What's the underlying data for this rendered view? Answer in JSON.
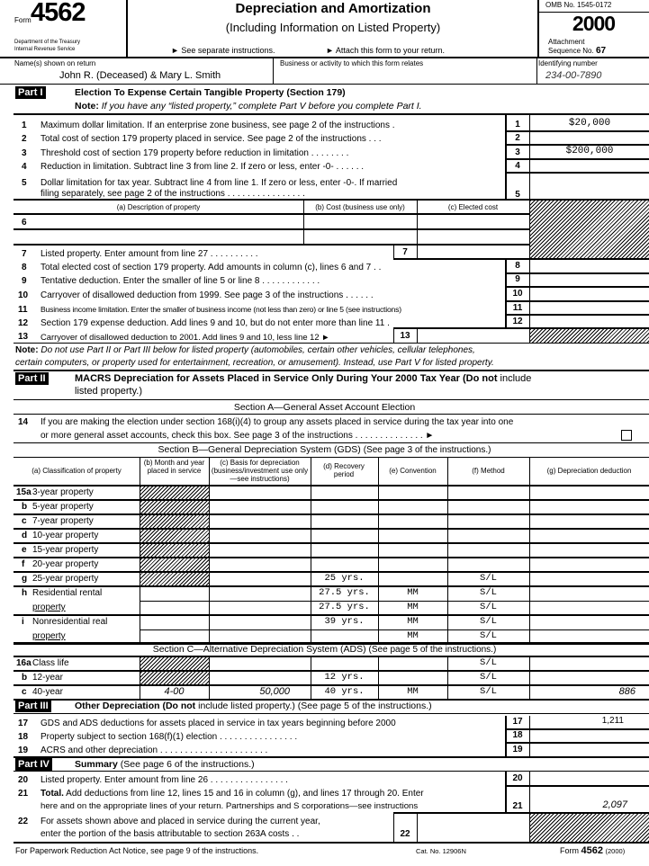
{
  "header": {
    "form_label": "Form",
    "form_number": "4562",
    "dept": "Department of the Treasury",
    "irs": "Internal Revenue Service",
    "title": "Depreciation and Amortization",
    "subtitle": "(Including Information on Listed Property)",
    "instr1": "► See separate instructions.",
    "instr2": "► Attach this form to your return.",
    "omb": "OMB No. 1545-0172",
    "year": "2000",
    "attachment": "Attachment",
    "sequence_label": "Sequence No.",
    "sequence_no": "67"
  },
  "taxpayer": {
    "name_label": "Name(s) shown on return",
    "name": "John R. (Deceased) & Mary L. Smith",
    "business_label": "Business or activity to which this form relates",
    "id_label": "Identifying number",
    "id": "234-00-7890"
  },
  "part1": {
    "badge": "Part I",
    "title": "Election To Expense Certain Tangible Property (Section 179)",
    "note_label": "Note:",
    "note": "If you have any “listed property,” complete Part V before you complete Part I.",
    "lines": [
      {
        "num": "1",
        "text": "Maximum dollar limitation. If an enterprise zone business, see page 2 of the instructions  .",
        "value": "$20,000"
      },
      {
        "num": "2",
        "text": "Total cost of section 179 property placed in service. See page 2 of the instructions  .  .  .",
        "value": ""
      },
      {
        "num": "3",
        "text": "Threshold cost of section 179 property before reduction in limitation  .  .  .  .  .  .  .  .",
        "value": "$200,000"
      },
      {
        "num": "4",
        "text": "Reduction in limitation. Subtract line 3 from line 2. If zero or less, enter -0-   .  .  .  .  .  .",
        "value": ""
      },
      {
        "num": "5",
        "text": "Dollar limitation for tax year. Subtract line 4 from line 1. If zero or less, enter -0-. If married",
        "text2": "filing separately, see page 2 of the instructions  .  .  .  .  .  .  .  .  .  .  .  .  .  .  .  .",
        "value": ""
      }
    ],
    "table6": {
      "num": "6",
      "col_a": "(a) Description of property",
      "col_b": "(b) Cost (business use only)",
      "col_c": "(c) Elected cost"
    },
    "line7": {
      "num": "7",
      "text": "Listed property. Enter amount from line 27  .  .  .  .  .  .  .  .  .  ."
    },
    "lines2": [
      {
        "num": "8",
        "text": "Total elected cost of section 179 property. Add amounts in column (c), lines 6 and 7   .  ."
      },
      {
        "num": "9",
        "text": "Tentative deduction. Enter the smaller of line 5 or line 8  .  .  .  .  .  .  .  .  .  .  .  ."
      },
      {
        "num": "10",
        "text": "Carryover of disallowed deduction from 1999. See page 3 of the instructions  .  .  .  .  .  ."
      },
      {
        "num": "11",
        "text": "Business income limitation. Enter the smaller of business income (not less than zero) or line 5 (see instructions)"
      },
      {
        "num": "12",
        "text": "Section 179 expense deduction. Add lines 9 and 10, but do not enter more than line 11   ."
      }
    ],
    "line13": {
      "num": "13",
      "text": "Carryover of disallowed deduction to 2001. Add lines 9 and 10, less line 12 ►"
    }
  },
  "note2": {
    "label": "Note:",
    "line1": "Do not use Part II or Part III below for listed property (automobiles, certain other vehicles, cellular telephones,",
    "line2": "certain computers, or property used for entertainment, recreation, or amusement). Instead, use Part V for listed property."
  },
  "part2": {
    "badge": "Part II",
    "title": "MACRS Depreciation for Assets Placed in Service Only During Your 2000 Tax Year (",
    "title_bold2": "Do not",
    "title_end": " include",
    "title_line2": "listed property.)",
    "section_a": "Section A—General Asset Account Election",
    "line14": {
      "num": "14",
      "text1": "If you are making the election under section 168(i)(4) to group any assets placed in service during the tax year into one",
      "text2": "or more general asset accounts, check this box. See page 3 of the instructions  .  .  .  .  .  .  .  .  .  .  .  .  .  . ►"
    },
    "section_b": "Section B—General Depreciation System (GDS)",
    "section_b_note": "(See page 3 of the instructions.)",
    "columns": [
      "(a)   Classification of property",
      "(b) Month and year placed in service",
      "(c) Basis for depreciation (business/investment use only—see instructions)",
      "(d) Recovery period",
      "(e) Convention",
      "(f) Method",
      "(g) Depreciation deduction"
    ],
    "rows15": [
      {
        "letter": "15a",
        "label": "3-year property",
        "d": "",
        "e": "",
        "f": ""
      },
      {
        "letter": "b",
        "label": "5-year property",
        "d": "",
        "e": "",
        "f": ""
      },
      {
        "letter": "c",
        "label": "7-year property",
        "d": "",
        "e": "",
        "f": ""
      },
      {
        "letter": "d",
        "label": "10-year property",
        "d": "",
        "e": "",
        "f": ""
      },
      {
        "letter": "e",
        "label": "15-year property",
        "d": "",
        "e": "",
        "f": ""
      },
      {
        "letter": "f",
        "label": "20-year property",
        "d": "",
        "e": "",
        "f": ""
      },
      {
        "letter": "g",
        "label": "25-year property",
        "d": "25 yrs.",
        "e": "",
        "f": "S/L"
      },
      {
        "letter": "h",
        "label": "Residential rental",
        "label2": "property",
        "d": "27.5 yrs.",
        "e": "MM",
        "f": "S/L",
        "d2": "27.5 yrs.",
        "e2": "MM",
        "f2": "S/L"
      },
      {
        "letter": "i",
        "label": "Nonresidential real",
        "label2": "property",
        "d": "39 yrs.",
        "e": "MM",
        "f": "S/L",
        "d2": "",
        "e2": "MM",
        "f2": "S/L"
      }
    ],
    "section_c": "Section C—Alternative Depreciation System (ADS)",
    "section_c_note": "(See page 5 of the instructions.)",
    "rows16": [
      {
        "letter": "16a",
        "label": "Class life",
        "b": "",
        "c": "",
        "d": "",
        "e": "",
        "f": "S/L",
        "g": ""
      },
      {
        "letter": "b",
        "label": "12-year",
        "b": "",
        "c": "",
        "d": "12 yrs.",
        "e": "",
        "f": "S/L",
        "g": ""
      },
      {
        "letter": "c",
        "label": "40-year",
        "b": "4-00",
        "c": "50,000",
        "d": "40 yrs.",
        "e": "MM",
        "f": "S/L",
        "g": "886"
      }
    ]
  },
  "part3": {
    "badge": "Part III",
    "title": "Other Depreciation (",
    "title_b2": "Do not",
    "title_rest": " include listed property.) (See page 5 of the instructions.)",
    "lines": [
      {
        "num": "17",
        "text": "GDS and ADS deductions for assets placed in service in tax years beginning before 2000",
        "value": "1,211"
      },
      {
        "num": "18",
        "text": "Property subject to section 168(f)(1) election  .  .  .  .  .  .  .  .  .  .  .  .  .  .  .  .",
        "value": ""
      },
      {
        "num": "19",
        "text": "ACRS and other depreciation  .  .  .  .  .  .  .  .  .  .  .  .  .  .  .  .  .  .  .  .  .  .",
        "value": ""
      }
    ]
  },
  "part4": {
    "badge": "Part IV",
    "title": "Summary",
    "title_note": "(See page 6 of the instructions.)",
    "line20": {
      "num": "20",
      "text": "Listed property. Enter amount from line 26  .  .  .  .  .  .  .  .  .  .  .  .  .  .  .  .",
      "value": ""
    },
    "line21": {
      "num": "21",
      "bold": "Total.",
      "text1": " Add deductions from line 12, lines 15 and 16 in column (g), and lines 17 through 20. Enter",
      "text2": "here and on the appropriate lines of your return. Partnerships and S corporations—see instructions",
      "value": "2,097"
    },
    "line22": {
      "num": "22",
      "text1": "For assets shown above and placed in service during the current year,",
      "text2": "enter the portion of the basis attributable to section 263A costs   .  ."
    }
  },
  "footer": {
    "paperwork": "For Paperwork Reduction Act Notice, see page 9 of the instructions.",
    "cat": "Cat. No. 12906N",
    "form_label": "Form",
    "form_number": "4562",
    "year": "(2000)"
  }
}
